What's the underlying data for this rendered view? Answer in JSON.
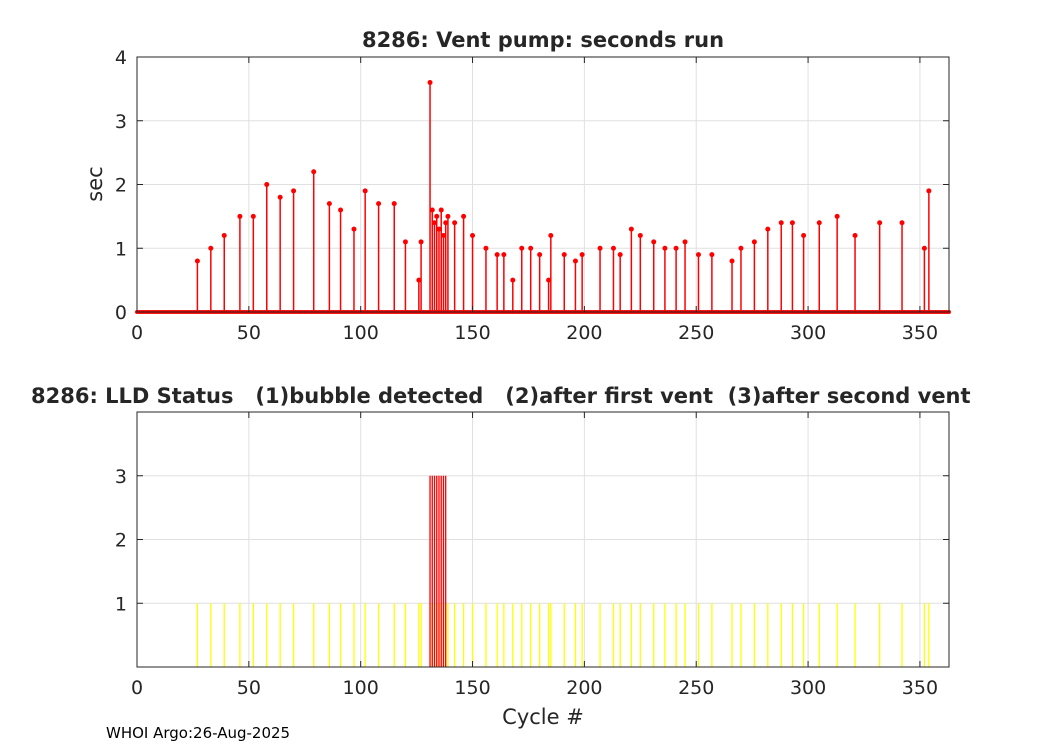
{
  "footer": "WHOI Argo:26-Aug-2025",
  "chart_data": [
    {
      "type": "stem",
      "title": "8286: Vent pump: seconds run",
      "xlabel": "",
      "ylabel": "sec",
      "xlim": [
        0,
        363
      ],
      "ylim": [
        0,
        4
      ],
      "xticks": [
        0,
        50,
        100,
        150,
        200,
        250,
        300,
        350
      ],
      "yticks": [
        0,
        1,
        2,
        3,
        4
      ],
      "grid": true,
      "series": [
        {
          "color": "#ff0000",
          "x": [
            27,
            33,
            39,
            46,
            52,
            58,
            64,
            70,
            79,
            86,
            91,
            97,
            102,
            108,
            115,
            120,
            126,
            127,
            131,
            132,
            133,
            134,
            135,
            136,
            137,
            138,
            139,
            142,
            146,
            150,
            156,
            161,
            164,
            168,
            172,
            176,
            180,
            184,
            185,
            191,
            196,
            199,
            207,
            213,
            216,
            221,
            225,
            231,
            236,
            241,
            245,
            251,
            257,
            266,
            270,
            276,
            282,
            288,
            293,
            298,
            305,
            313,
            321,
            332,
            342,
            352,
            354
          ],
          "y": [
            0.8,
            1.0,
            1.2,
            1.5,
            1.5,
            2.0,
            1.8,
            1.9,
            2.2,
            1.7,
            1.6,
            1.3,
            1.9,
            1.7,
            1.7,
            1.1,
            0.5,
            1.1,
            3.6,
            1.6,
            1.4,
            1.5,
            1.3,
            1.6,
            1.2,
            1.4,
            1.5,
            1.4,
            1.5,
            1.2,
            1.0,
            0.9,
            0.9,
            0.5,
            1.0,
            1.0,
            0.9,
            0.5,
            1.2,
            0.9,
            0.8,
            0.9,
            1.0,
            1.0,
            0.9,
            1.3,
            1.2,
            1.1,
            1.0,
            1.0,
            1.1,
            0.9,
            0.9,
            0.8,
            1.0,
            1.1,
            1.3,
            1.4,
            1.4,
            1.2,
            1.4,
            1.5,
            1.2,
            1.4,
            1.4,
            1.0,
            1.9
          ]
        }
      ]
    },
    {
      "type": "bar",
      "title": "8286: LLD Status   (1)bubble detected   (2)after first vent  (3)after second vent",
      "xlabel": "Cycle #",
      "ylabel": "",
      "xlim": [
        0,
        363
      ],
      "ylim": [
        0,
        4
      ],
      "xticks": [
        0,
        50,
        100,
        150,
        200,
        250,
        300,
        350
      ],
      "yticks": [
        1,
        2,
        3
      ],
      "grid": true,
      "series": [
        {
          "color": "#ffff00",
          "value": 1,
          "x": [
            27,
            33,
            39,
            46,
            52,
            58,
            64,
            70,
            79,
            86,
            91,
            97,
            102,
            108,
            115,
            120,
            126,
            127,
            131,
            132,
            133,
            134,
            135,
            136,
            137,
            138,
            139,
            142,
            146,
            150,
            156,
            161,
            164,
            168,
            172,
            176,
            180,
            184,
            185,
            191,
            196,
            199,
            207,
            213,
            216,
            221,
            225,
            231,
            236,
            241,
            245,
            251,
            257,
            266,
            270,
            276,
            282,
            288,
            293,
            298,
            305,
            313,
            321,
            332,
            342,
            352,
            354
          ]
        },
        {
          "color": "#ff0000",
          "value": 3,
          "x": [
            131,
            132,
            133,
            134,
            135,
            136,
            137,
            138
          ]
        }
      ]
    }
  ]
}
